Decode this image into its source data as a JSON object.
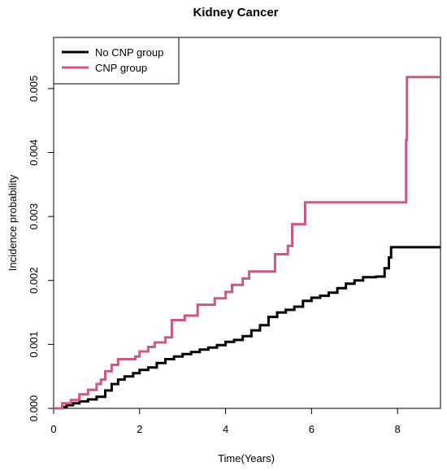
{
  "chart_data": {
    "type": "line",
    "step": true,
    "title": "Kidney Cancer",
    "xlabel": "Time(Years)",
    "ylabel": "Incidence probability",
    "xlim": [
      0,
      9
    ],
    "ylim": [
      0,
      0.0058
    ],
    "xticks": [
      0,
      2,
      4,
      6,
      8
    ],
    "yticks": [
      0.0,
      0.001,
      0.002,
      0.003,
      0.004,
      0.005
    ],
    "ytick_labels": [
      "0.000",
      "0.001",
      "0.002",
      "0.003",
      "0.004",
      "0.005"
    ],
    "legend_position": "top-left",
    "series": [
      {
        "name": "No CNP group",
        "color": "#000000",
        "points": [
          [
            0.0,
            0.0
          ],
          [
            0.2,
            2e-05
          ],
          [
            0.3,
            5e-05
          ],
          [
            0.45,
            8e-05
          ],
          [
            0.6,
            0.00011
          ],
          [
            0.8,
            0.00014
          ],
          [
            1.0,
            0.00018
          ],
          [
            1.2,
            0.00028
          ],
          [
            1.35,
            0.00038
          ],
          [
            1.5,
            0.00045
          ],
          [
            1.65,
            0.0005
          ],
          [
            1.85,
            0.00055
          ],
          [
            2.0,
            0.0006
          ],
          [
            2.2,
            0.00064
          ],
          [
            2.4,
            0.00071
          ],
          [
            2.6,
            0.00077
          ],
          [
            2.8,
            0.00081
          ],
          [
            3.0,
            0.00085
          ],
          [
            3.2,
            0.00088
          ],
          [
            3.4,
            0.00092
          ],
          [
            3.6,
            0.00095
          ],
          [
            3.8,
            0.00099
          ],
          [
            4.0,
            0.00104
          ],
          [
            4.2,
            0.00107
          ],
          [
            4.4,
            0.00113
          ],
          [
            4.6,
            0.00122
          ],
          [
            4.8,
            0.0013
          ],
          [
            5.0,
            0.00143
          ],
          [
            5.2,
            0.0015
          ],
          [
            5.4,
            0.00154
          ],
          [
            5.6,
            0.00159
          ],
          [
            5.8,
            0.00168
          ],
          [
            6.0,
            0.00173
          ],
          [
            6.2,
            0.00176
          ],
          [
            6.4,
            0.00181
          ],
          [
            6.6,
            0.00188
          ],
          [
            6.8,
            0.00195
          ],
          [
            7.0,
            0.002
          ],
          [
            7.2,
            0.00205
          ],
          [
            7.5,
            0.00206
          ],
          [
            7.7,
            0.00219
          ],
          [
            7.8,
            0.00236
          ],
          [
            7.85,
            0.00252
          ],
          [
            8.0,
            0.00252
          ],
          [
            9.0,
            0.00252
          ]
        ]
      },
      {
        "name": "CNP group",
        "color": "#CF597E",
        "points": [
          [
            0.0,
            0.0
          ],
          [
            0.2,
            8e-05
          ],
          [
            0.4,
            0.00013
          ],
          [
            0.6,
            0.00022
          ],
          [
            0.8,
            0.00029
          ],
          [
            1.0,
            0.00038
          ],
          [
            1.1,
            0.00045
          ],
          [
            1.2,
            0.00058
          ],
          [
            1.35,
            0.00068
          ],
          [
            1.5,
            0.00077
          ],
          [
            1.9,
            0.00081
          ],
          [
            2.0,
            0.00089
          ],
          [
            2.2,
            0.00096
          ],
          [
            2.35,
            0.00103
          ],
          [
            2.6,
            0.00111
          ],
          [
            2.75,
            0.00138
          ],
          [
            3.05,
            0.00145
          ],
          [
            3.35,
            0.00162
          ],
          [
            3.75,
            0.00172
          ],
          [
            4.0,
            0.00182
          ],
          [
            4.15,
            0.00193
          ],
          [
            4.4,
            0.00203
          ],
          [
            4.55,
            0.00214
          ],
          [
            5.15,
            0.00241
          ],
          [
            5.45,
            0.00254
          ],
          [
            5.55,
            0.00288
          ],
          [
            5.85,
            0.00322
          ],
          [
            8.15,
            0.00322
          ],
          [
            8.2,
            0.0042
          ],
          [
            8.22,
            0.00518
          ],
          [
            9.0,
            0.00518
          ]
        ]
      }
    ]
  }
}
